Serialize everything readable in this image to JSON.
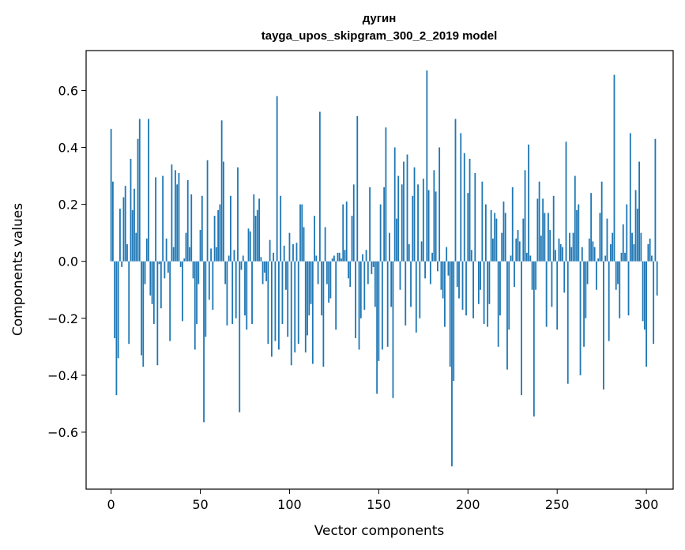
{
  "chart_data": {
    "type": "bar",
    "title": "дугин",
    "subtitle": "tayga_upos_skipgram_300_2_2019 model",
    "xlabel": "Vector components",
    "ylabel": "Components values",
    "xlim": [
      -14,
      315
    ],
    "ylim": [
      -0.8,
      0.74
    ],
    "xticks": [
      0,
      50,
      100,
      150,
      200,
      250,
      300
    ],
    "yticks": [
      -0.6,
      -0.4,
      -0.2,
      0.0,
      0.2,
      0.4,
      0.6
    ],
    "ytick_labels": [
      "−0.6",
      "−0.4",
      "−0.2",
      "0.0",
      "0.2",
      "0.4",
      "0.6"
    ],
    "xtick_labels": [
      "0",
      "50",
      "100",
      "150",
      "200",
      "250",
      "300"
    ],
    "grid": false,
    "bar_color": "#1f77b4",
    "values": [
      0.465,
      0.28,
      -0.27,
      -0.47,
      -0.34,
      0.185,
      -0.02,
      0.225,
      0.265,
      0.06,
      -0.29,
      0.36,
      0.18,
      0.255,
      0.1,
      0.43,
      0.5,
      -0.33,
      -0.37,
      -0.08,
      0.08,
      0.5,
      -0.12,
      -0.15,
      -0.22,
      0.295,
      -0.365,
      -0.01,
      -0.165,
      0.3,
      -0.06,
      0.08,
      -0.04,
      -0.28,
      0.34,
      0.05,
      0.32,
      0.27,
      0.31,
      -0.02,
      -0.21,
      0.01,
      0.1,
      0.285,
      0.05,
      0.235,
      -0.06,
      -0.31,
      -0.22,
      -0.08,
      0.11,
      0.23,
      -0.565,
      -0.265,
      0.355,
      -0.135,
      0.045,
      -0.17,
      0.16,
      0.05,
      0.18,
      0.2,
      0.495,
      0.35,
      -0.08,
      -0.225,
      0.02,
      0.23,
      -0.22,
      0.04,
      -0.2,
      0.33,
      -0.53,
      -0.03,
      0.02,
      -0.19,
      -0.24,
      0.115,
      0.105,
      -0.22,
      0.235,
      0.16,
      0.18,
      0.22,
      0.015,
      -0.08,
      -0.04,
      -0.07,
      -0.29,
      0.075,
      -0.335,
      0.03,
      -0.28,
      0.58,
      -0.31,
      0.23,
      -0.22,
      0.055,
      -0.1,
      -0.265,
      0.1,
      -0.365,
      0.06,
      -0.32,
      0.065,
      -0.29,
      0.2,
      0.2,
      0.12,
      -0.32,
      -0.26,
      -0.19,
      -0.15,
      -0.36,
      0.16,
      0.02,
      -0.08,
      0.525,
      -0.19,
      -0.37,
      0.12,
      -0.08,
      -0.145,
      -0.13,
      0.01,
      0.02,
      -0.24,
      0.03,
      0.03,
      0.01,
      0.2,
      0.04,
      0.21,
      -0.06,
      -0.09,
      0.16,
      0.27,
      -0.27,
      0.51,
      -0.31,
      -0.2,
      0.025,
      -0.17,
      0.04,
      -0.08,
      0.26,
      -0.045,
      -0.02,
      -0.16,
      -0.465,
      -0.35,
      0.2,
      -0.31,
      0.26,
      0.47,
      -0.3,
      0.1,
      -0.16,
      -0.48,
      0.4,
      0.15,
      0.3,
      -0.1,
      0.27,
      0.35,
      -0.225,
      0.375,
      0.06,
      -0.16,
      0.23,
      0.33,
      -0.25,
      0.27,
      -0.2,
      0.07,
      0.29,
      -0.06,
      0.67,
      0.25,
      -0.08,
      0.03,
      0.32,
      0.245,
      -0.035,
      0.4,
      -0.1,
      -0.13,
      -0.23,
      0.05,
      -0.05,
      -0.37,
      -0.72,
      -0.42,
      0.5,
      -0.09,
      -0.13,
      0.45,
      -0.17,
      0.38,
      -0.19,
      0.24,
      0.36,
      0.04,
      -0.2,
      0.31,
      0.0,
      -0.15,
      -0.1,
      0.28,
      -0.22,
      0.2,
      -0.23,
      -0.15,
      0.18,
      0.08,
      0.17,
      0.15,
      -0.3,
      -0.19,
      0.1,
      0.21,
      0.17,
      -0.38,
      -0.24,
      0.02,
      0.26,
      -0.09,
      0.08,
      0.11,
      0.07,
      -0.47,
      0.15,
      0.32,
      0.03,
      0.41,
      0.02,
      -0.1,
      -0.545,
      -0.1,
      0.22,
      0.28,
      0.09,
      0.22,
      0.17,
      -0.23,
      0.17,
      0.11,
      -0.16,
      0.23,
      0.04,
      -0.24,
      0.08,
      0.06,
      0.05,
      -0.11,
      0.42,
      -0.43,
      0.1,
      0.05,
      0.1,
      0.3,
      0.18,
      0.2,
      -0.4,
      0.05,
      -0.3,
      -0.2,
      -0.08,
      0.08,
      0.24,
      0.07,
      0.05,
      -0.1,
      0.01,
      0.17,
      0.28,
      -0.45,
      0.02,
      0.15,
      -0.28,
      0.06,
      0.1,
      0.655,
      -0.1,
      -0.08,
      -0.2,
      0.03,
      0.13,
      0.03,
      0.2,
      -0.19,
      0.45,
      0.1,
      0.06,
      0.25,
      0.185,
      0.35,
      0.1,
      -0.21,
      -0.24,
      -0.37,
      0.06,
      0.08,
      0.02,
      -0.29,
      0.43,
      -0.12
    ]
  }
}
